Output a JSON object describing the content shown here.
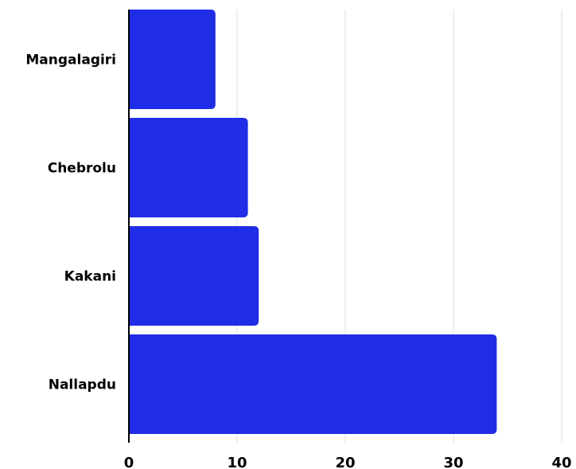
{
  "chart_data": {
    "type": "bar",
    "orientation": "horizontal",
    "title": "",
    "xlabel": "",
    "ylabel": "",
    "categories": [
      "Mangalagiri",
      "Chebrolu",
      "Kakani",
      "Nallapdu"
    ],
    "values": [
      8,
      11,
      12,
      34
    ],
    "xlim": [
      0,
      40
    ],
    "xticks": [
      "0",
      "10",
      "20",
      "30",
      "40"
    ],
    "grid": "vertical",
    "legend": "none",
    "bar_color": "#1f2de6",
    "axis_color": "#000000",
    "grid_color": "#dddddd"
  }
}
